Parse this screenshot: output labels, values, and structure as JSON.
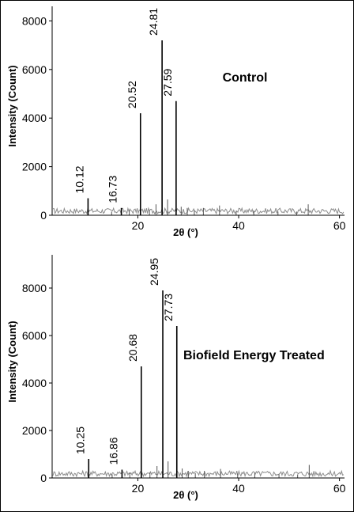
{
  "chart_data": [
    {
      "type": "line",
      "title": "Control",
      "xlabel": "2θ (°)",
      "ylabel": "Intensity (Count)",
      "xlim": [
        3,
        61
      ],
      "ylim": [
        0,
        8600
      ],
      "x_ticks": [
        20,
        40,
        60
      ],
      "y_ticks": [
        0,
        2000,
        4000,
        6000,
        8000
      ],
      "peaks": [
        {
          "x": 10.12,
          "y": 700,
          "label": "10.12"
        },
        {
          "x": 16.73,
          "y": 300,
          "label": "16.73"
        },
        {
          "x": 20.52,
          "y": 4200,
          "label": "20.52"
        },
        {
          "x": 24.81,
          "y": 7200,
          "label": "24.81"
        },
        {
          "x": 27.59,
          "y": 4700,
          "label": "27.59"
        }
      ],
      "minor_peaks": [
        {
          "x": 14.8,
          "y": 150
        },
        {
          "x": 18.3,
          "y": 220
        },
        {
          "x": 22.3,
          "y": 200
        },
        {
          "x": 23.6,
          "y": 450
        },
        {
          "x": 25.9,
          "y": 650
        },
        {
          "x": 28.6,
          "y": 350
        },
        {
          "x": 29.8,
          "y": 300
        },
        {
          "x": 31.2,
          "y": 200
        },
        {
          "x": 33.0,
          "y": 300
        },
        {
          "x": 36.2,
          "y": 400
        },
        {
          "x": 39.5,
          "y": 180
        },
        {
          "x": 43.0,
          "y": 200
        },
        {
          "x": 47.8,
          "y": 150
        },
        {
          "x": 51.5,
          "y": 150
        },
        {
          "x": 53.8,
          "y": 450
        }
      ]
    },
    {
      "type": "line",
      "title": "Biofield Energy Treated",
      "xlabel": "2θ (°)",
      "ylabel": "Intensity (Count)",
      "xlim": [
        3,
        61
      ],
      "ylim": [
        0,
        9400
      ],
      "x_ticks": [
        20,
        40,
        60
      ],
      "y_ticks": [
        0,
        2000,
        4000,
        6000,
        8000
      ],
      "peaks": [
        {
          "x": 10.25,
          "y": 800,
          "label": "10.25"
        },
        {
          "x": 16.86,
          "y": 350,
          "label": "16.86"
        },
        {
          "x": 20.68,
          "y": 4700,
          "label": "20.68"
        },
        {
          "x": 24.95,
          "y": 7900,
          "label": "24.95"
        },
        {
          "x": 27.73,
          "y": 6400,
          "label": "27.73"
        }
      ],
      "minor_peaks": [
        {
          "x": 14.9,
          "y": 150
        },
        {
          "x": 18.4,
          "y": 230
        },
        {
          "x": 22.4,
          "y": 220
        },
        {
          "x": 23.8,
          "y": 500
        },
        {
          "x": 26.0,
          "y": 700
        },
        {
          "x": 28.8,
          "y": 400
        },
        {
          "x": 30.0,
          "y": 300
        },
        {
          "x": 31.4,
          "y": 200
        },
        {
          "x": 33.2,
          "y": 300
        },
        {
          "x": 36.4,
          "y": 380
        },
        {
          "x": 39.8,
          "y": 180
        },
        {
          "x": 43.2,
          "y": 220
        },
        {
          "x": 48.0,
          "y": 160
        },
        {
          "x": 51.7,
          "y": 150
        },
        {
          "x": 54.0,
          "y": 550
        }
      ]
    }
  ]
}
